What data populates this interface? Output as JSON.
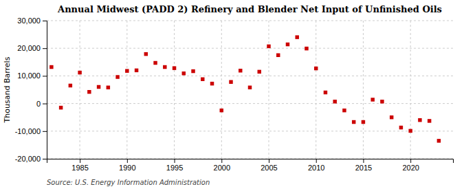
{
  "chart_data": {
    "type": "scatter",
    "title": "Annual Midwest (PADD 2) Refinery and Blender Net Input of Unfinished Oils",
    "ylabel": "Thousand Barrels",
    "annotations": [
      "Source: U.S. Energy Information Administration"
    ],
    "x": [
      1982,
      1983,
      1984,
      1985,
      1986,
      1987,
      1988,
      1989,
      1990,
      1991,
      1992,
      1993,
      1994,
      1995,
      1996,
      1997,
      1998,
      1999,
      2000,
      2001,
      2002,
      2003,
      2004,
      2005,
      2006,
      2007,
      2008,
      2009,
      2010,
      2011,
      2012,
      2013,
      2014,
      2015,
      2016,
      2017,
      2018,
      2019,
      2020,
      2021,
      2022,
      2023
    ],
    "values": [
      13200,
      -1500,
      6500,
      11200,
      4200,
      6000,
      5800,
      9600,
      11800,
      12000,
      17900,
      14700,
      13200,
      12800,
      10900,
      11700,
      8800,
      7200,
      -2500,
      7800,
      11900,
      5800,
      11500,
      20700,
      17500,
      21400,
      24000,
      19900,
      12700,
      4000,
      700,
      -2500,
      -6700,
      -6700,
      1400,
      700,
      -5000,
      -8700,
      -9900,
      -6000,
      -6300,
      -13500
    ],
    "color": "#cc0000",
    "marker": "square",
    "xlim": [
      1981.5,
      2024.5
    ],
    "xticks": [
      1985,
      1990,
      1995,
      2000,
      2005,
      2010,
      2015,
      2020
    ],
    "ylim": [
      -20000,
      30000
    ],
    "yticks": [
      {
        "value": -20000,
        "label": "-20,000"
      },
      {
        "value": -10000,
        "label": "-10,000"
      },
      0,
      {
        "value": 10000,
        "label": "10,000"
      },
      {
        "value": 20000,
        "label": "20,000"
      },
      {
        "value": 30000,
        "label": "30,000"
      }
    ],
    "grid": true
  }
}
